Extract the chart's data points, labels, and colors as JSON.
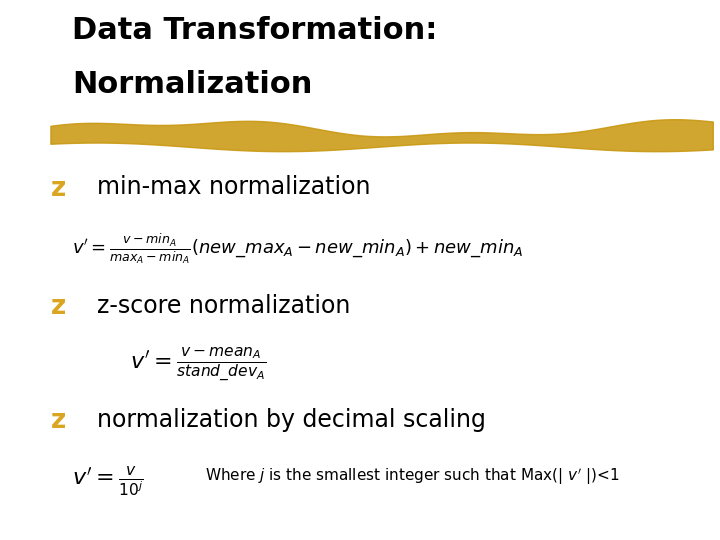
{
  "background_color": "#ffffff",
  "title_line1": "Data Transformation:",
  "title_line2": "Normalization",
  "title_color": "#000000",
  "title_fontsize": 22,
  "bullet_color": "#DAA520",
  "bullet_char": "z",
  "bullet1_text": "min-max normalization",
  "bullet2_text": "z-score normalization",
  "bullet3_text": "normalization by decimal scaling",
  "highlight_color": "#C8960C",
  "text_fontsize": 17,
  "formula_fontsize": 13,
  "note_fontsize": 11
}
